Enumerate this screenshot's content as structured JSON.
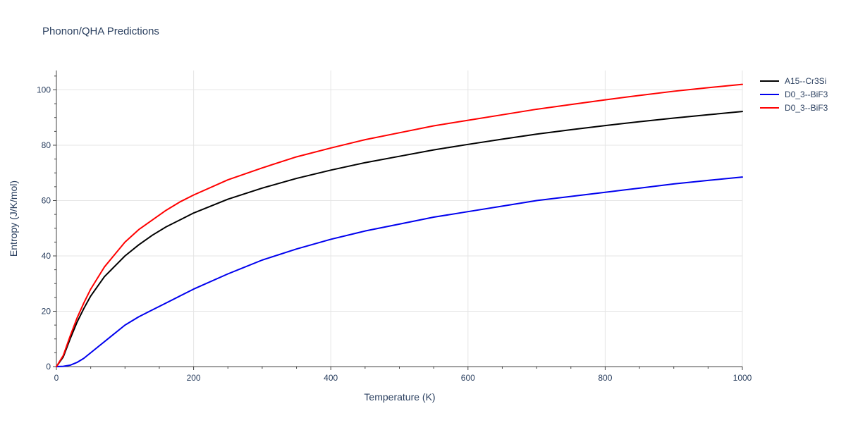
{
  "chart_data": {
    "type": "line",
    "title": "Phonon/QHA Predictions",
    "xlabel": "Temperature (K)",
    "ylabel": "Entropy (J/K/mol)",
    "xlim": [
      0,
      1000
    ],
    "ylim": [
      0,
      107
    ],
    "x_ticks": [
      0,
      200,
      400,
      600,
      800,
      1000
    ],
    "y_ticks": [
      0,
      20,
      40,
      60,
      80,
      100
    ],
    "x_tick_labels": [
      "0",
      "200",
      "400",
      "600",
      "800",
      "1000"
    ],
    "y_tick_labels": [
      "0",
      "20",
      "40",
      "60",
      "80",
      "100"
    ],
    "grid": true,
    "legend_position": "top-right",
    "series": [
      {
        "name": "A15--Cr3Si",
        "color": "#000000",
        "x": [
          0,
          10,
          20,
          30,
          40,
          50,
          60,
          70,
          80,
          90,
          100,
          120,
          140,
          160,
          180,
          200,
          250,
          300,
          350,
          400,
          450,
          500,
          550,
          600,
          650,
          700,
          750,
          800,
          850,
          900,
          950,
          1000
        ],
        "y": [
          0,
          3.5,
          10,
          16,
          21,
          25.5,
          29,
          32.5,
          35,
          37.5,
          40,
          44,
          47.5,
          50.5,
          53,
          55.5,
          60.5,
          64.5,
          68,
          71,
          73.7,
          76,
          78.3,
          80.3,
          82.2,
          84,
          85.6,
          87.1,
          88.5,
          89.8,
          91,
          92.2
        ]
      },
      {
        "name": "D0_3--BiF3",
        "color": "#0000ee",
        "x": [
          0,
          10,
          20,
          30,
          40,
          50,
          60,
          80,
          100,
          120,
          140,
          160,
          180,
          200,
          250,
          300,
          350,
          400,
          450,
          500,
          550,
          600,
          650,
          700,
          750,
          800,
          850,
          900,
          950,
          1000
        ],
        "y": [
          0,
          0.1,
          0.5,
          1.5,
          3,
          5,
          7,
          11,
          15,
          18,
          20.5,
          23,
          25.5,
          28,
          33.5,
          38.5,
          42.5,
          46,
          49,
          51.5,
          54,
          56,
          58,
          60,
          61.5,
          63,
          64.5,
          66,
          67.3,
          68.5
        ]
      },
      {
        "name": "D0_3--BiF3",
        "color": "#ff0000",
        "x": [
          0,
          10,
          20,
          30,
          40,
          50,
          60,
          70,
          80,
          90,
          100,
          120,
          140,
          160,
          180,
          200,
          250,
          300,
          350,
          400,
          450,
          500,
          550,
          600,
          650,
          700,
          750,
          800,
          850,
          900,
          950,
          1000
        ],
        "y": [
          0,
          4,
          11,
          17.5,
          23,
          28,
          32,
          36,
          39,
          42,
          45,
          49.5,
          53,
          56.5,
          59.5,
          62,
          67.5,
          71.8,
          75.8,
          79,
          82,
          84.5,
          87,
          89,
          91,
          93,
          94.7,
          96.4,
          98,
          99.5,
          100.8,
          102
        ]
      }
    ]
  }
}
